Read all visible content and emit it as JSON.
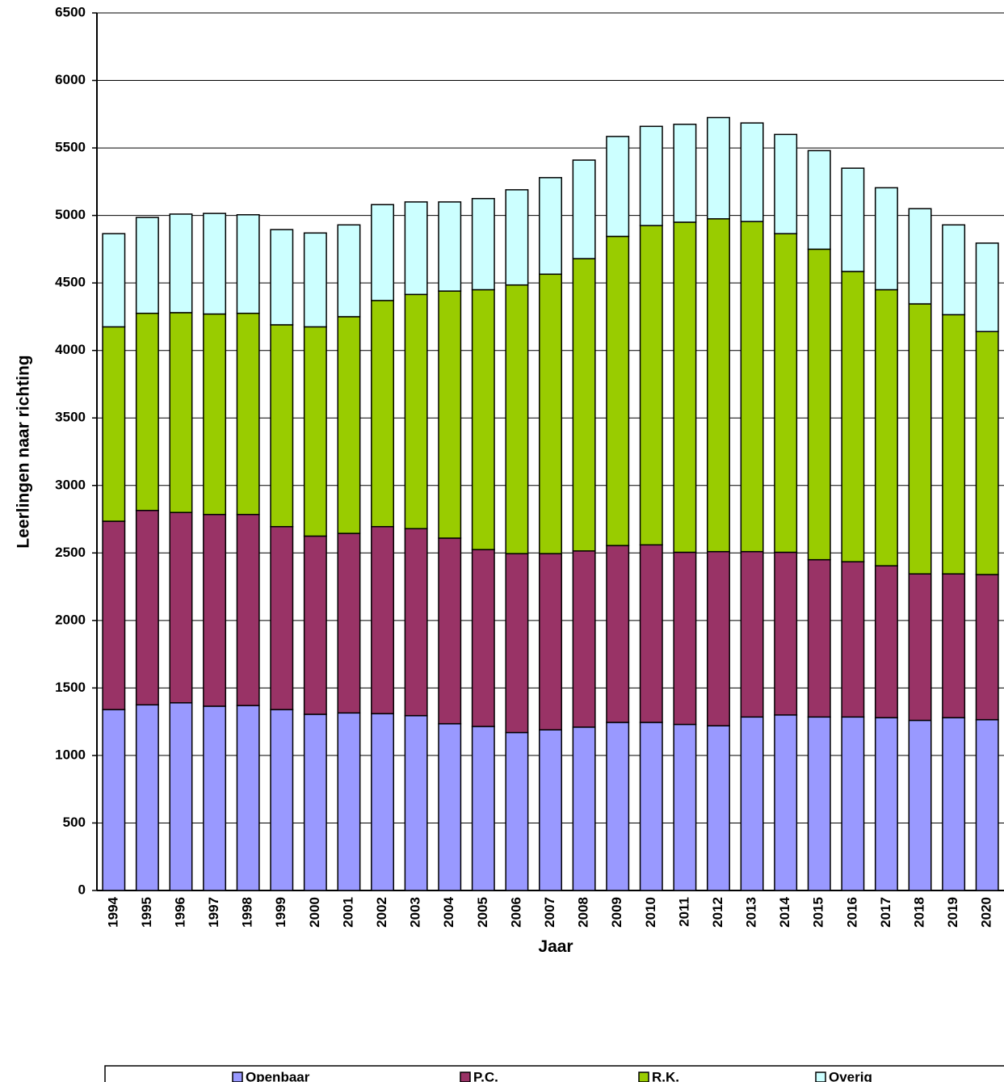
{
  "chart_data": {
    "type": "stacked_bar",
    "x_label": "Jaar",
    "y_label": "Leerlingen naar richting",
    "categories": [
      "1994",
      "1995",
      "1996",
      "1997",
      "1998",
      "1999",
      "2000",
      "2001",
      "2002",
      "2003",
      "2004",
      "2005",
      "2006",
      "2007",
      "2008",
      "2009",
      "2010",
      "2011",
      "2012",
      "2013",
      "2014",
      "2015",
      "2016",
      "2017",
      "2018",
      "2019",
      "2020"
    ],
    "series": [
      {
        "name": "Openbaar",
        "color": "#9999ff",
        "values": [
          1340,
          1375,
          1390,
          1365,
          1370,
          1340,
          1305,
          1315,
          1310,
          1295,
          1235,
          1215,
          1170,
          1190,
          1210,
          1245,
          1245,
          1230,
          1220,
          1285,
          1300,
          1285,
          1285,
          1280,
          1260,
          1280,
          1265
        ]
      },
      {
        "name": "P.C.",
        "color": "#993366",
        "values": [
          1395,
          1440,
          1410,
          1420,
          1415,
          1355,
          1320,
          1330,
          1385,
          1385,
          1375,
          1310,
          1325,
          1305,
          1305,
          1310,
          1315,
          1275,
          1290,
          1225,
          1205,
          1165,
          1150,
          1125,
          1085,
          1065,
          1075
        ]
      },
      {
        "name": "R.K.",
        "color": "#99cc00",
        "values": [
          1440,
          1460,
          1480,
          1485,
          1490,
          1495,
          1550,
          1605,
          1675,
          1735,
          1830,
          1925,
          1990,
          2070,
          2165,
          2290,
          2365,
          2445,
          2465,
          2445,
          2360,
          2300,
          2150,
          2045,
          2000,
          1920,
          1800
        ]
      },
      {
        "name": "Overig",
        "color": "#ccffff",
        "values": [
          690,
          710,
          730,
          745,
          730,
          705,
          695,
          680,
          710,
          685,
          660,
          675,
          705,
          715,
          730,
          740,
          735,
          725,
          750,
          730,
          735,
          730,
          765,
          755,
          705,
          665,
          655
        ]
      }
    ],
    "ylim": [
      0,
      6500
    ],
    "yticks": [
      0,
      500,
      1000,
      1500,
      2000,
      2500,
      3000,
      3500,
      4000,
      4500,
      5000,
      5500,
      6000,
      6500
    ],
    "grid": true,
    "legend": "bottom"
  }
}
